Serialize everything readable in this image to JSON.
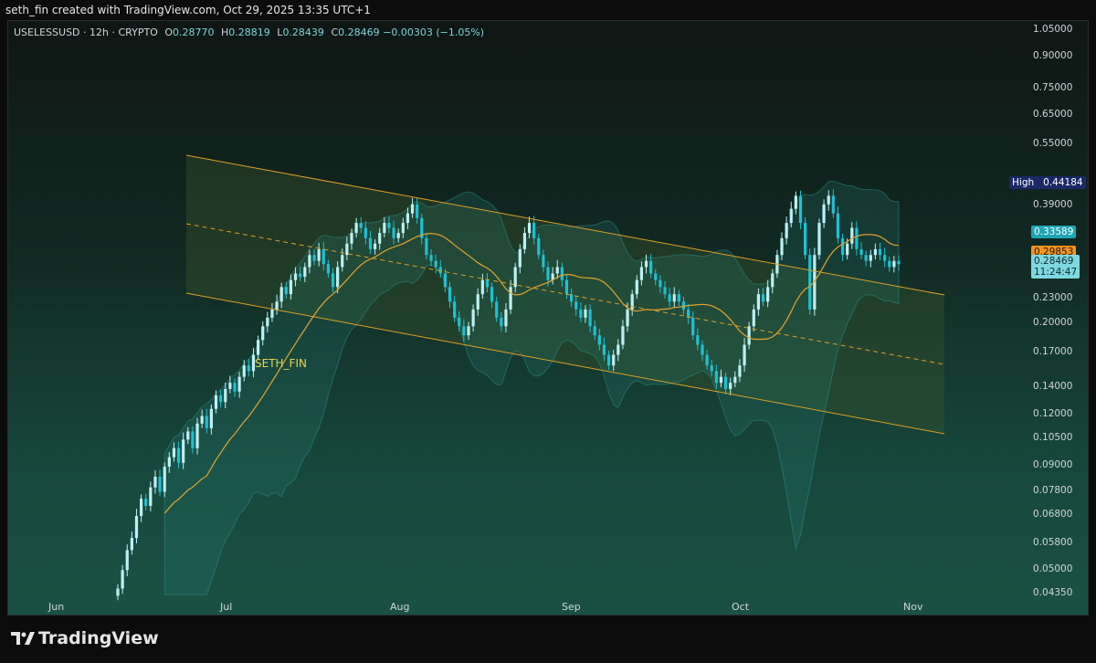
{
  "header": {
    "credit": "seth_fin created with TradingView.com, Oct 29, 2025 13:35 UTC+1"
  },
  "legend": {
    "symbol": "USELESSUSD · 12h · CRYPTO",
    "open_label": "O",
    "open": "0.28770",
    "high_label": "H",
    "high": "0.28819",
    "low_label": "L",
    "low": "0.28439",
    "close_label": "C",
    "close": "0.28469",
    "change": "−0.00303 (−1.05%)"
  },
  "watermark": "SETH_FIN",
  "price_axis": {
    "ticks": [
      "1.05000",
      "0.90000",
      "0.75000",
      "0.65000",
      "0.55000",
      "0.39000",
      "0.23000",
      "0.20000",
      "0.17000",
      "0.14000",
      "0.12000",
      "0.10500",
      "0.09000",
      "0.07800",
      "0.06800",
      "0.05800",
      "0.05000",
      "0.04350"
    ],
    "high_label": "High",
    "high_value": "0.44184",
    "level_1": "0.33589",
    "level_2": "0.29853",
    "last_price": "0.28469",
    "countdown": "11:24:47"
  },
  "time_axis": {
    "labels": [
      "Jun",
      "Jul",
      "Aug",
      "Sep",
      "Oct",
      "Nov"
    ]
  },
  "footer": {
    "brand": "TradingView"
  },
  "colors": {
    "up": "#bdf0f4",
    "down": "#1fc0d4",
    "channel": "#e0a020",
    "ma": "#e6a42a",
    "band": "#2d8f8a",
    "high_badge": "#1a2a66",
    "level_badge": "#1ea6b4",
    "price_badge": "#f7931a"
  },
  "chart_data": {
    "type": "candlestick",
    "symbol": "USELESSUSD",
    "interval": "12h",
    "scale": "log",
    "ylim": [
      0.0435,
      1.1
    ],
    "x": [
      "2025-06-01",
      "2025-11-06"
    ],
    "last_close": 0.28469,
    "closes": [
      0.045,
      0.05,
      0.056,
      0.06,
      0.068,
      0.075,
      0.072,
      0.08,
      0.085,
      0.078,
      0.09,
      0.095,
      0.1,
      0.092,
      0.105,
      0.11,
      0.1,
      0.115,
      0.12,
      0.112,
      0.125,
      0.135,
      0.13,
      0.14,
      0.145,
      0.138,
      0.15,
      0.16,
      0.155,
      0.17,
      0.185,
      0.2,
      0.21,
      0.22,
      0.23,
      0.25,
      0.24,
      0.26,
      0.27,
      0.265,
      0.28,
      0.3,
      0.29,
      0.31,
      0.285,
      0.27,
      0.25,
      0.28,
      0.3,
      0.32,
      0.34,
      0.36,
      0.35,
      0.33,
      0.31,
      0.32,
      0.34,
      0.36,
      0.35,
      0.33,
      0.34,
      0.36,
      0.38,
      0.4,
      0.37,
      0.33,
      0.3,
      0.29,
      0.28,
      0.27,
      0.25,
      0.23,
      0.21,
      0.2,
      0.19,
      0.2,
      0.22,
      0.24,
      0.26,
      0.25,
      0.23,
      0.21,
      0.2,
      0.22,
      0.25,
      0.28,
      0.31,
      0.34,
      0.36,
      0.33,
      0.3,
      0.28,
      0.26,
      0.27,
      0.28,
      0.26,
      0.24,
      0.23,
      0.22,
      0.21,
      0.22,
      0.2,
      0.19,
      0.18,
      0.17,
      0.16,
      0.17,
      0.18,
      0.2,
      0.22,
      0.24,
      0.26,
      0.28,
      0.29,
      0.27,
      0.26,
      0.25,
      0.24,
      0.23,
      0.24,
      0.23,
      0.22,
      0.21,
      0.19,
      0.18,
      0.17,
      0.16,
      0.155,
      0.145,
      0.15,
      0.14,
      0.145,
      0.15,
      0.16,
      0.18,
      0.2,
      0.22,
      0.24,
      0.23,
      0.25,
      0.27,
      0.3,
      0.33,
      0.36,
      0.39,
      0.42,
      0.36,
      0.3,
      0.22,
      0.3,
      0.36,
      0.4,
      0.42,
      0.38,
      0.33,
      0.3,
      0.32,
      0.35,
      0.31,
      0.3,
      0.29,
      0.3,
      0.31,
      0.3,
      0.29,
      0.28,
      0.29,
      0.28469
    ],
    "indicators": [
      "Parallel channel (descending)",
      "Moving average",
      "Bollinger Bands"
    ]
  }
}
